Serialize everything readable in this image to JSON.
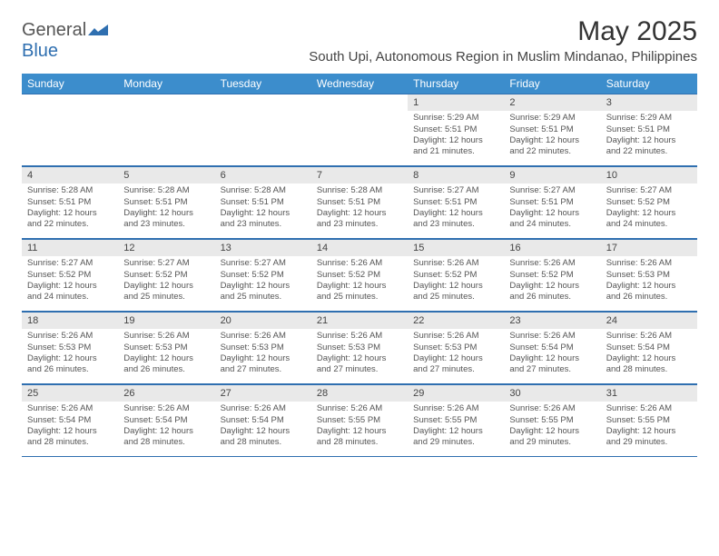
{
  "brand": {
    "part1": "General",
    "part2": "Blue"
  },
  "title": "May 2025",
  "location": "South Upi, Autonomous Region in Muslim Mindanao, Philippines",
  "colors": {
    "header_bg": "#3c8dcc",
    "border": "#2f6fb0",
    "daynum_bg": "#e9e9e9",
    "text": "#555555"
  },
  "day_names": [
    "Sunday",
    "Monday",
    "Tuesday",
    "Wednesday",
    "Thursday",
    "Friday",
    "Saturday"
  ],
  "weeks": [
    [
      {
        "n": "",
        "sr": "",
        "ss": "",
        "dl": ""
      },
      {
        "n": "",
        "sr": "",
        "ss": "",
        "dl": ""
      },
      {
        "n": "",
        "sr": "",
        "ss": "",
        "dl": ""
      },
      {
        "n": "",
        "sr": "",
        "ss": "",
        "dl": ""
      },
      {
        "n": "1",
        "sr": "5:29 AM",
        "ss": "5:51 PM",
        "dl": "12 hours and 21 minutes."
      },
      {
        "n": "2",
        "sr": "5:29 AM",
        "ss": "5:51 PM",
        "dl": "12 hours and 22 minutes."
      },
      {
        "n": "3",
        "sr": "5:29 AM",
        "ss": "5:51 PM",
        "dl": "12 hours and 22 minutes."
      }
    ],
    [
      {
        "n": "4",
        "sr": "5:28 AM",
        "ss": "5:51 PM",
        "dl": "12 hours and 22 minutes."
      },
      {
        "n": "5",
        "sr": "5:28 AM",
        "ss": "5:51 PM",
        "dl": "12 hours and 23 minutes."
      },
      {
        "n": "6",
        "sr": "5:28 AM",
        "ss": "5:51 PM",
        "dl": "12 hours and 23 minutes."
      },
      {
        "n": "7",
        "sr": "5:28 AM",
        "ss": "5:51 PM",
        "dl": "12 hours and 23 minutes."
      },
      {
        "n": "8",
        "sr": "5:27 AM",
        "ss": "5:51 PM",
        "dl": "12 hours and 23 minutes."
      },
      {
        "n": "9",
        "sr": "5:27 AM",
        "ss": "5:51 PM",
        "dl": "12 hours and 24 minutes."
      },
      {
        "n": "10",
        "sr": "5:27 AM",
        "ss": "5:52 PM",
        "dl": "12 hours and 24 minutes."
      }
    ],
    [
      {
        "n": "11",
        "sr": "5:27 AM",
        "ss": "5:52 PM",
        "dl": "12 hours and 24 minutes."
      },
      {
        "n": "12",
        "sr": "5:27 AM",
        "ss": "5:52 PM",
        "dl": "12 hours and 25 minutes."
      },
      {
        "n": "13",
        "sr": "5:27 AM",
        "ss": "5:52 PM",
        "dl": "12 hours and 25 minutes."
      },
      {
        "n": "14",
        "sr": "5:26 AM",
        "ss": "5:52 PM",
        "dl": "12 hours and 25 minutes."
      },
      {
        "n": "15",
        "sr": "5:26 AM",
        "ss": "5:52 PM",
        "dl": "12 hours and 25 minutes."
      },
      {
        "n": "16",
        "sr": "5:26 AM",
        "ss": "5:52 PM",
        "dl": "12 hours and 26 minutes."
      },
      {
        "n": "17",
        "sr": "5:26 AM",
        "ss": "5:53 PM",
        "dl": "12 hours and 26 minutes."
      }
    ],
    [
      {
        "n": "18",
        "sr": "5:26 AM",
        "ss": "5:53 PM",
        "dl": "12 hours and 26 minutes."
      },
      {
        "n": "19",
        "sr": "5:26 AM",
        "ss": "5:53 PM",
        "dl": "12 hours and 26 minutes."
      },
      {
        "n": "20",
        "sr": "5:26 AM",
        "ss": "5:53 PM",
        "dl": "12 hours and 27 minutes."
      },
      {
        "n": "21",
        "sr": "5:26 AM",
        "ss": "5:53 PM",
        "dl": "12 hours and 27 minutes."
      },
      {
        "n": "22",
        "sr": "5:26 AM",
        "ss": "5:53 PM",
        "dl": "12 hours and 27 minutes."
      },
      {
        "n": "23",
        "sr": "5:26 AM",
        "ss": "5:54 PM",
        "dl": "12 hours and 27 minutes."
      },
      {
        "n": "24",
        "sr": "5:26 AM",
        "ss": "5:54 PM",
        "dl": "12 hours and 28 minutes."
      }
    ],
    [
      {
        "n": "25",
        "sr": "5:26 AM",
        "ss": "5:54 PM",
        "dl": "12 hours and 28 minutes."
      },
      {
        "n": "26",
        "sr": "5:26 AM",
        "ss": "5:54 PM",
        "dl": "12 hours and 28 minutes."
      },
      {
        "n": "27",
        "sr": "5:26 AM",
        "ss": "5:54 PM",
        "dl": "12 hours and 28 minutes."
      },
      {
        "n": "28",
        "sr": "5:26 AM",
        "ss": "5:55 PM",
        "dl": "12 hours and 28 minutes."
      },
      {
        "n": "29",
        "sr": "5:26 AM",
        "ss": "5:55 PM",
        "dl": "12 hours and 29 minutes."
      },
      {
        "n": "30",
        "sr": "5:26 AM",
        "ss": "5:55 PM",
        "dl": "12 hours and 29 minutes."
      },
      {
        "n": "31",
        "sr": "5:26 AM",
        "ss": "5:55 PM",
        "dl": "12 hours and 29 minutes."
      }
    ]
  ],
  "labels": {
    "sunrise": "Sunrise: ",
    "sunset": "Sunset: ",
    "daylight": "Daylight: "
  }
}
